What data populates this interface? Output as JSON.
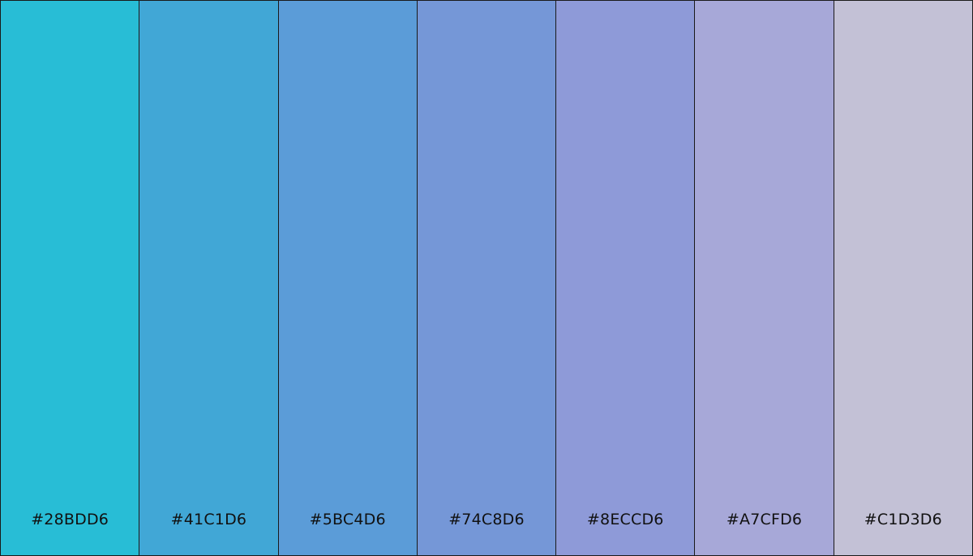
{
  "palette": {
    "swatches": [
      {
        "hex": "#28BDD6",
        "color": "#28BDD6"
      },
      {
        "hex": "#41C1D6",
        "color": "#41A7D6"
      },
      {
        "hex": "#5BC4D6",
        "color": "#5B9CD8"
      },
      {
        "hex": "#74C8D6",
        "color": "#7597D7"
      },
      {
        "hex": "#8ECCD6",
        "color": "#8E9AD8"
      },
      {
        "hex": "#A7CFD6",
        "color": "#A7A8D8"
      },
      {
        "hex": "#C1D3D6",
        "color": "#C3C1D6"
      }
    ]
  }
}
